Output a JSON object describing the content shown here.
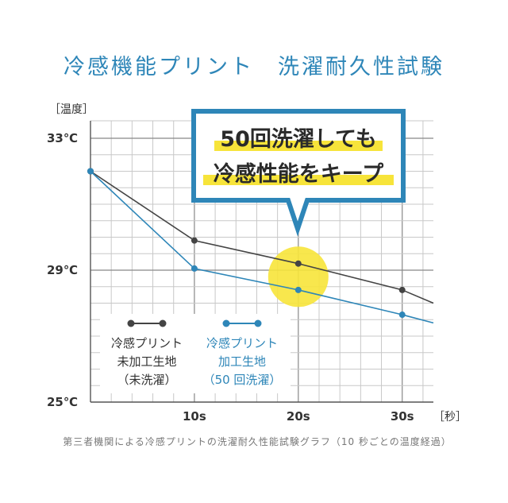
{
  "title": "冷感機能プリント　洗濯耐久性試験",
  "caption": "第三者機関による冷感プリントの洗濯耐久性能試験グラフ（10 秒ごとの温度経過）",
  "callout": {
    "line1": "50回洗濯しても",
    "line2": "冷感性能をキープ"
  },
  "colors": {
    "accent": "#2e86b8",
    "series_untreated": "#444444",
    "series_treated": "#2e86b8",
    "highlight": "#f7e43a",
    "grid": "#c8c8c8"
  },
  "chart_data": {
    "type": "line",
    "ylabel": "［温度］",
    "xlabel": "［秒］",
    "ylim": [
      25,
      33
    ],
    "xlim": [
      0,
      33
    ],
    "yticks": [
      {
        "value": 33,
        "label": "33℃"
      },
      {
        "value": 29,
        "label": "29℃"
      },
      {
        "value": 25,
        "label": "25℃"
      }
    ],
    "xticks": [
      {
        "value": 10,
        "label": "10s"
      },
      {
        "value": 20,
        "label": "20s"
      },
      {
        "value": 30,
        "label": "30s"
      }
    ],
    "grid": true,
    "legend_position": "bottom-left",
    "series": [
      {
        "key": "untreated",
        "legend_lines": [
          "冷感プリント",
          "未加工生地",
          "（未洗濯）"
        ],
        "color": "#444444",
        "x": [
          0,
          10,
          20,
          30,
          33
        ],
        "y": [
          32.0,
          29.9,
          29.2,
          28.4,
          28.0
        ]
      },
      {
        "key": "treated",
        "legend_lines": [
          "冷感プリント",
          "加工生地",
          "（50 回洗濯）"
        ],
        "color": "#2e86b8",
        "x": [
          0,
          10,
          20,
          30,
          33
        ],
        "y": [
          32.0,
          29.05,
          28.4,
          27.65,
          27.4
        ]
      }
    ],
    "highlight_x": 20
  }
}
